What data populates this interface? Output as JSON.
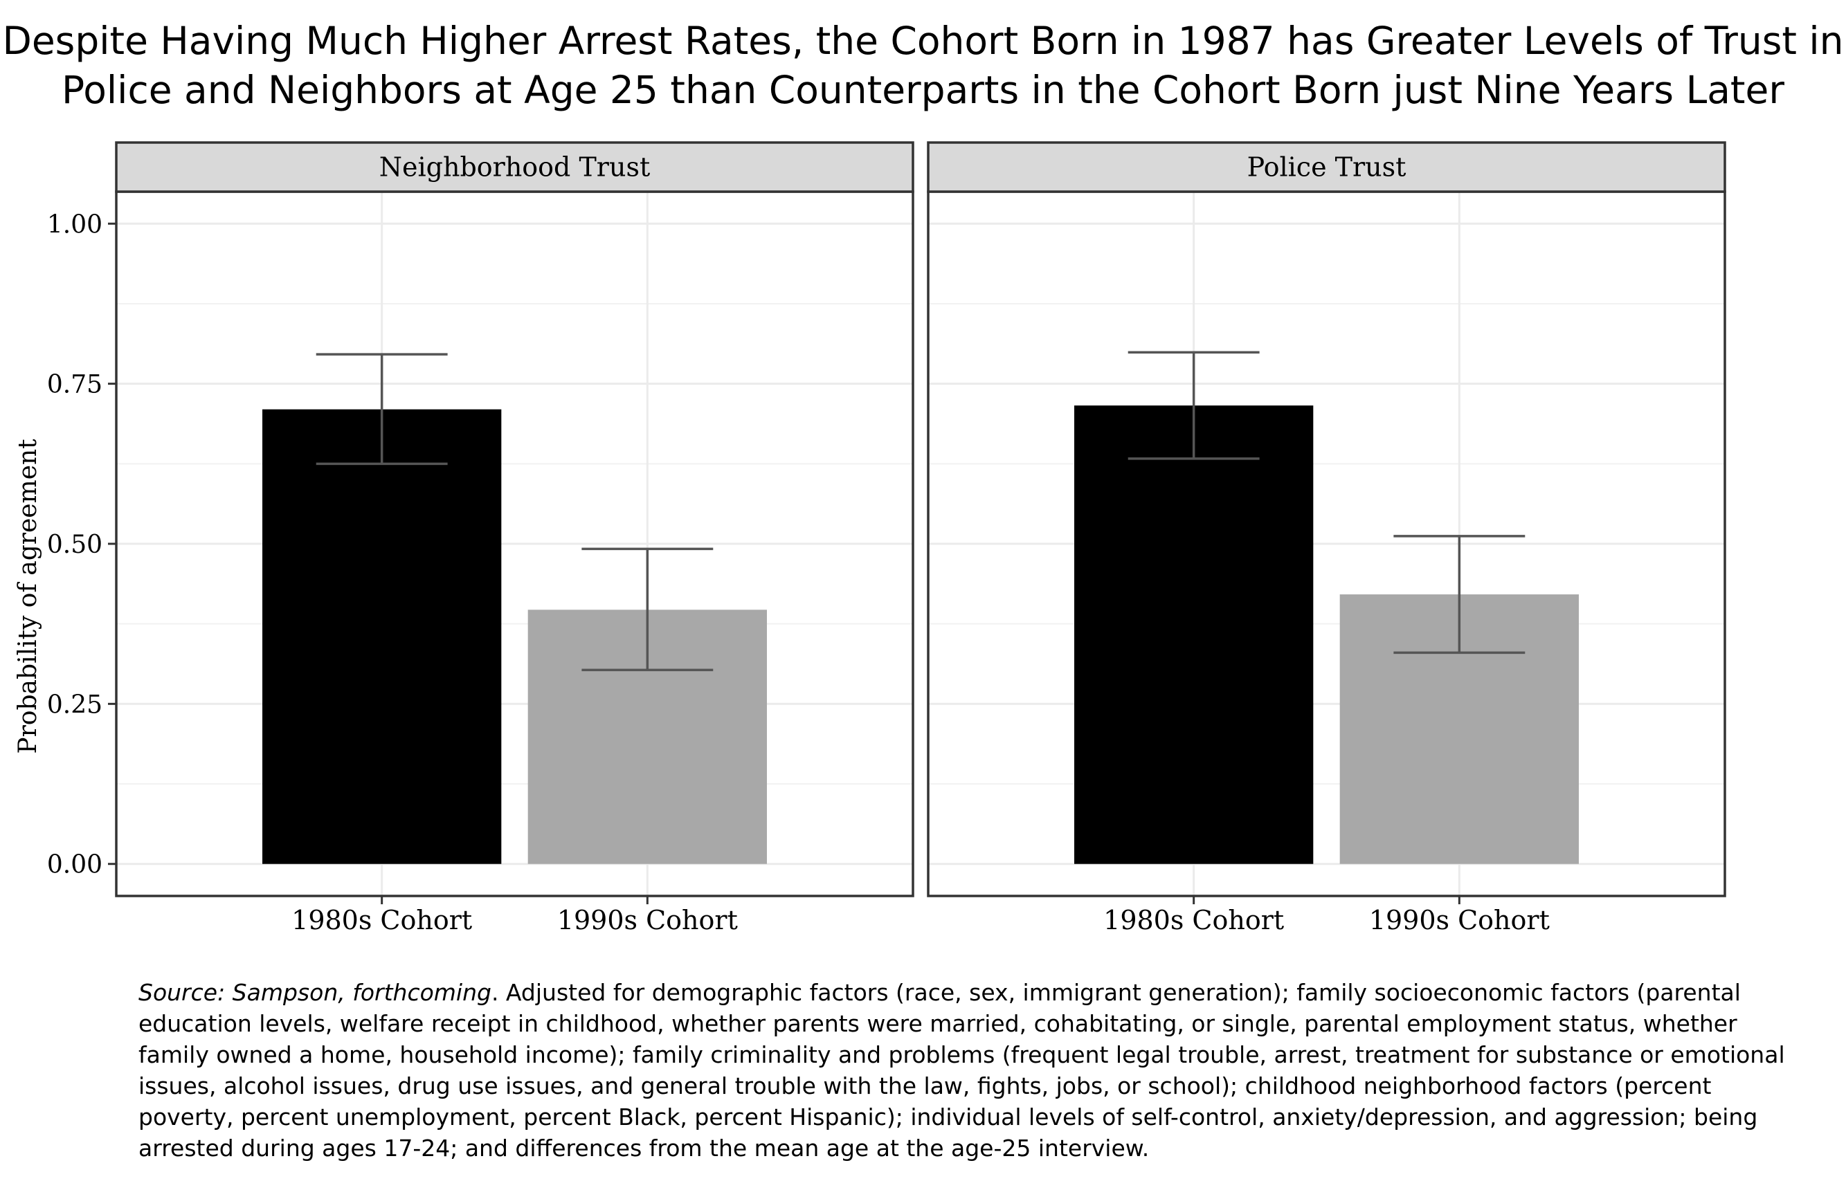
{
  "title_lines": [
    "Despite Having Much Higher Arrest Rates, the Cohort Born in 1987 has Greater Levels of Trust in",
    "Police and Neighbors at Age 25 than Counterparts in the Cohort Born just Nine Years Later"
  ],
  "caption": {
    "source": "Source: Sampson, forthcoming",
    "text": ".  Adjusted for demographic factors (race, sex, immigrant generation); family socioeconomic factors (parental education levels, welfare receipt in childhood, whether parents were married, cohabitating, or single, parental employment status, whether family owned a home, household income); family criminality and problems (frequent legal trouble, arrest, treatment for substance or emotional issues, alcohol issues, drug use issues, and general trouble with the law, fights, jobs, or school); childhood neighborhood factors (percent poverty, percent unemployment, percent Black, percent Hispanic); individual levels of self-control, anxiety/depression, and aggression; being arrested during ages 17-24; and differences from the mean age at the age-25 interview."
  },
  "chart_data": {
    "type": "bar",
    "ylabel": "Probability of agreement",
    "ylim": [
      -0.05,
      1.05
    ],
    "yticks": [
      0,
      0.25,
      0.5,
      0.75,
      1
    ],
    "ytick_labels": [
      "0.00",
      "0.25",
      "0.50",
      "0.75",
      "1.00"
    ],
    "grid": true,
    "categories": [
      "1980s Cohort",
      "1990s Cohort"
    ],
    "colors": [
      "#000000",
      "#a8a8a8"
    ],
    "panel_strip_color": "#d9d9d9",
    "errorbar_color": "#555555",
    "panels": [
      {
        "name": "Neighborhood Trust",
        "values": [
          0.71,
          0.397
        ],
        "lower": [
          0.625,
          0.303
        ],
        "upper": [
          0.796,
          0.492
        ]
      },
      {
        "name": "Police Trust",
        "values": [
          0.716,
          0.421
        ],
        "lower": [
          0.633,
          0.33
        ],
        "upper": [
          0.799,
          0.512
        ]
      }
    ]
  }
}
